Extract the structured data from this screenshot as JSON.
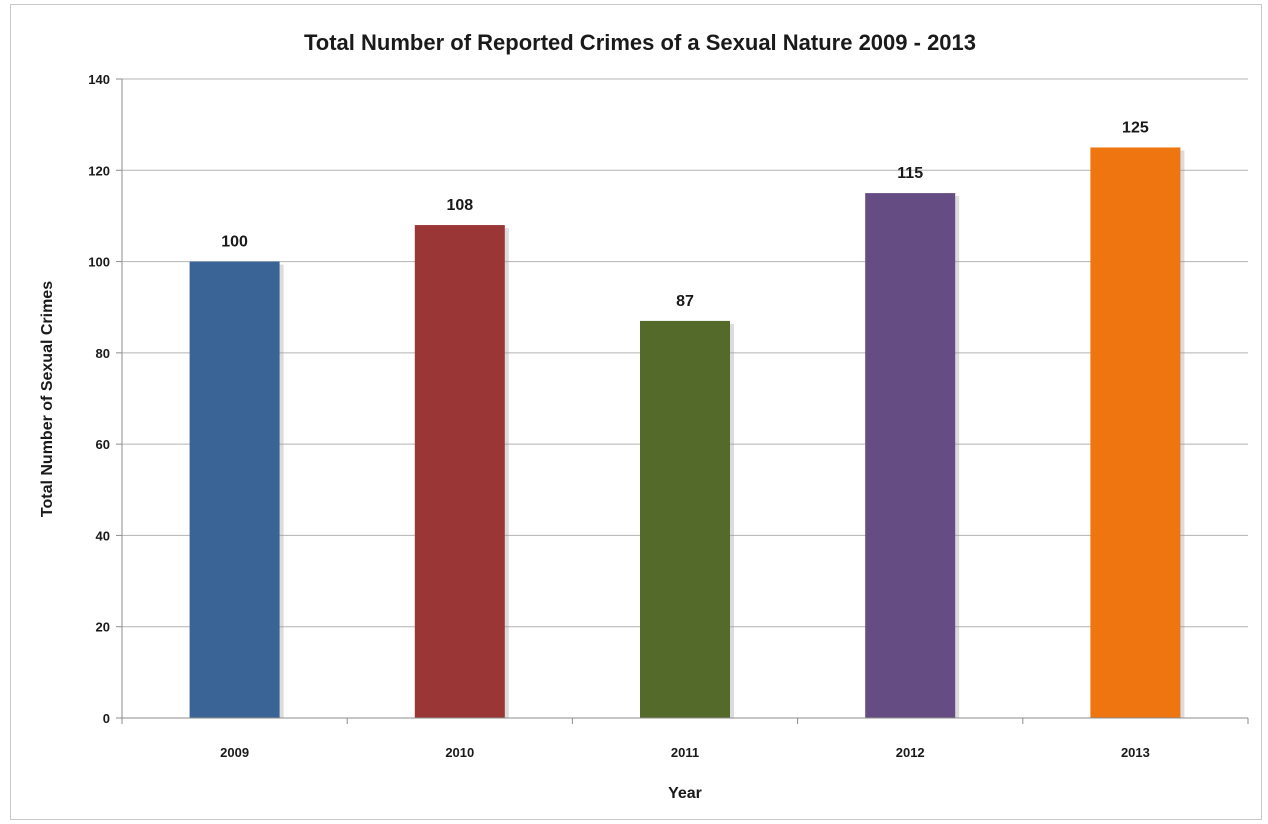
{
  "chart_data": {
    "type": "bar",
    "title": "Total Number of Reported Crimes of a Sexual Nature 2009 - 2013",
    "xlabel": "Year",
    "ylabel": "Total Number of Sexual Crimes",
    "categories": [
      "2009",
      "2010",
      "2011",
      "2012",
      "2013"
    ],
    "values": [
      100,
      108,
      87,
      115,
      125
    ],
    "data_labels": [
      "100",
      "108",
      "87",
      "115",
      "125"
    ],
    "colors": [
      "#3B6496",
      "#9B3636",
      "#536A2B",
      "#654C82",
      "#EE750F"
    ],
    "ylim": [
      0,
      140
    ],
    "yticks": [
      0,
      20,
      40,
      60,
      80,
      100,
      120,
      140
    ],
    "grid": true,
    "legend": "none"
  }
}
